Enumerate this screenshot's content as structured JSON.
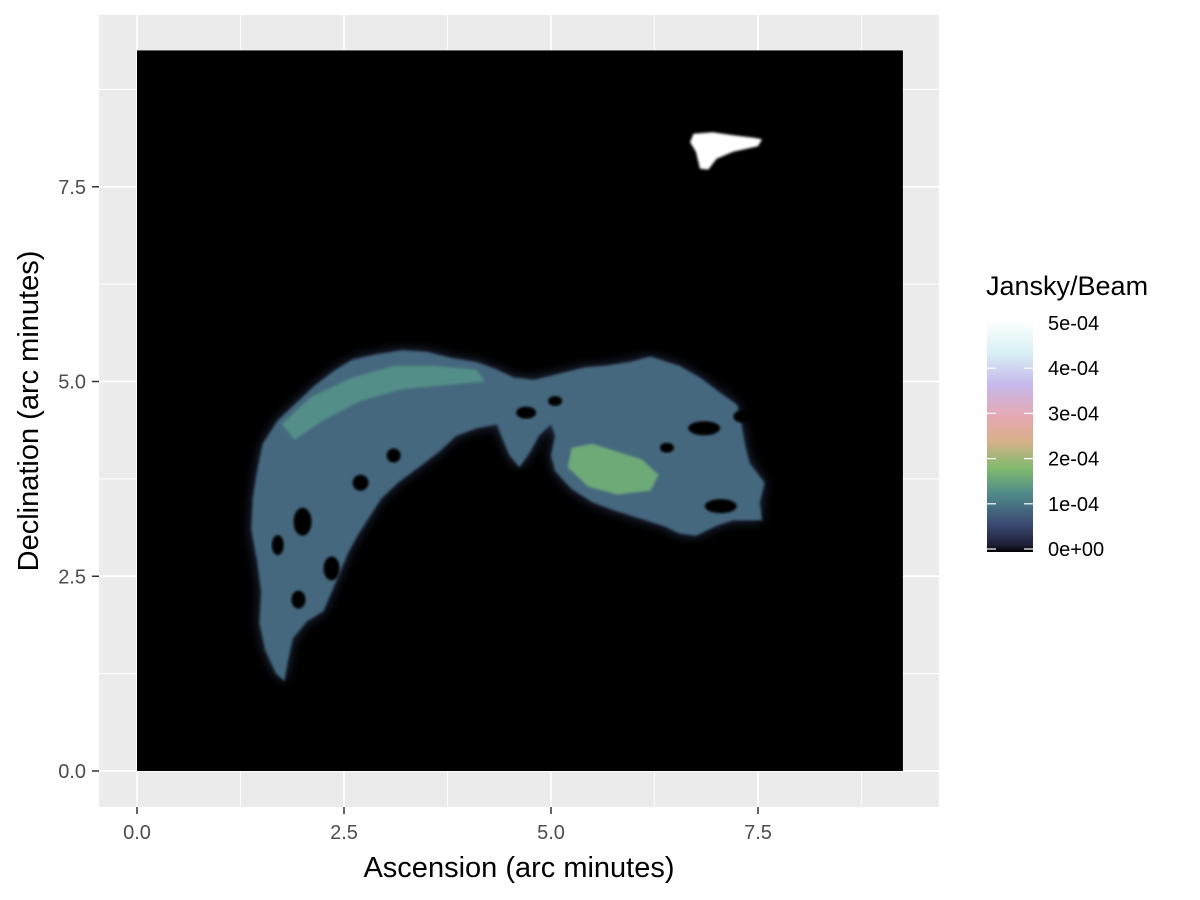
{
  "chart_data": {
    "type": "heatmap",
    "title": "",
    "xlabel": "Ascension (arc minutes)",
    "ylabel": "Declination (arc minutes)",
    "xlim": [
      -0.9,
      19.4
    ],
    "ylim": [
      -0.9,
      19.4
    ],
    "x_ticks": [
      0.0,
      2.5,
      5.0,
      7.5
    ],
    "x_tick_labels": [
      "0.0",
      "2.5",
      "5.0",
      "7.5"
    ],
    "y_ticks": [
      0.0,
      2.5,
      5.0,
      7.5
    ],
    "y_tick_labels": [
      "0.0",
      "2.5",
      "5.0",
      "7.5"
    ],
    "image_extent": {
      "x": [
        0.0,
        9.25
      ],
      "y": [
        0.0,
        9.25
      ]
    },
    "grid": true,
    "legend": {
      "title": "Jansky/Beam",
      "placement": "right",
      "breaks": [
        0.0,
        0.0001,
        0.0002,
        0.0003,
        0.0004,
        0.0005
      ],
      "break_labels": [
        "0e+00",
        "1e-04",
        "2e-04",
        "3e-04",
        "4e-04",
        "5e-04"
      ],
      "limits": [
        0.0,
        0.0005
      ]
    },
    "colormap": [
      "#000000",
      "#3b4a72",
      "#4f8a8b",
      "#7fba6d",
      "#e6a8b0",
      "#c6b8ec",
      "#eaf6f8",
      "#ffffff"
    ],
    "regions": [
      {
        "name": "upper-right compact source",
        "value": 0.00055,
        "outline": [
          [
            6.72,
            8.18
          ],
          [
            6.95,
            8.2
          ],
          [
            7.2,
            8.16
          ],
          [
            7.45,
            8.13
          ],
          [
            7.55,
            8.11
          ],
          [
            7.5,
            8.02
          ],
          [
            7.2,
            7.95
          ],
          [
            7.0,
            7.86
          ],
          [
            6.9,
            7.72
          ],
          [
            6.8,
            7.73
          ],
          [
            6.75,
            7.95
          ],
          [
            6.68,
            8.07
          ]
        ]
      },
      {
        "name": "arc and extended emission",
        "value": 9e-05,
        "outline": [
          [
            1.78,
            1.15
          ],
          [
            1.82,
            1.4
          ],
          [
            1.88,
            1.7
          ],
          [
            2.05,
            1.92
          ],
          [
            2.25,
            2.05
          ],
          [
            2.35,
            2.3
          ],
          [
            2.45,
            2.55
          ],
          [
            2.55,
            2.8
          ],
          [
            2.65,
            3.0
          ],
          [
            2.8,
            3.25
          ],
          [
            2.95,
            3.5
          ],
          [
            3.15,
            3.7
          ],
          [
            3.4,
            3.9
          ],
          [
            3.65,
            4.1
          ],
          [
            3.85,
            4.3
          ],
          [
            4.1,
            4.4
          ],
          [
            4.35,
            4.45
          ],
          [
            4.4,
            4.3
          ],
          [
            4.5,
            4.05
          ],
          [
            4.62,
            3.9
          ],
          [
            4.75,
            4.1
          ],
          [
            4.85,
            4.3
          ],
          [
            5.0,
            4.45
          ],
          [
            5.05,
            4.3
          ],
          [
            5.0,
            4.05
          ],
          [
            5.05,
            3.85
          ],
          [
            5.25,
            3.62
          ],
          [
            5.5,
            3.45
          ],
          [
            5.75,
            3.35
          ],
          [
            6.05,
            3.25
          ],
          [
            6.35,
            3.15
          ],
          [
            6.55,
            3.05
          ],
          [
            6.75,
            3.02
          ],
          [
            7.0,
            3.15
          ],
          [
            7.2,
            3.22
          ],
          [
            7.55,
            3.22
          ],
          [
            7.52,
            3.45
          ],
          [
            7.58,
            3.7
          ],
          [
            7.4,
            3.95
          ],
          [
            7.35,
            4.15
          ],
          [
            7.3,
            4.45
          ],
          [
            7.25,
            4.7
          ],
          [
            7.05,
            4.85
          ],
          [
            6.8,
            5.05
          ],
          [
            6.55,
            5.2
          ],
          [
            6.2,
            5.32
          ],
          [
            5.95,
            5.25
          ],
          [
            5.65,
            5.2
          ],
          [
            5.4,
            5.18
          ],
          [
            5.1,
            5.1
          ],
          [
            4.8,
            5.02
          ],
          [
            4.55,
            5.05
          ],
          [
            4.35,
            5.15
          ],
          [
            4.1,
            5.25
          ],
          [
            3.8,
            5.3
          ],
          [
            3.5,
            5.38
          ],
          [
            3.2,
            5.4
          ],
          [
            2.9,
            5.35
          ],
          [
            2.6,
            5.28
          ],
          [
            2.4,
            5.15
          ],
          [
            2.15,
            4.95
          ],
          [
            1.95,
            4.75
          ],
          [
            1.7,
            4.5
          ],
          [
            1.52,
            4.2
          ],
          [
            1.45,
            3.85
          ],
          [
            1.4,
            3.5
          ],
          [
            1.38,
            3.1
          ],
          [
            1.45,
            2.7
          ],
          [
            1.5,
            2.3
          ],
          [
            1.48,
            1.9
          ],
          [
            1.55,
            1.55
          ],
          [
            1.68,
            1.25
          ]
        ]
      },
      {
        "name": "bright knot west lobe",
        "value": 0.00016,
        "outline": [
          [
            5.2,
            3.9
          ],
          [
            5.45,
            3.65
          ],
          [
            5.8,
            3.55
          ],
          [
            6.2,
            3.6
          ],
          [
            6.3,
            3.8
          ],
          [
            6.1,
            4.0
          ],
          [
            5.8,
            4.1
          ],
          [
            5.5,
            4.2
          ],
          [
            5.25,
            4.15
          ]
        ]
      },
      {
        "name": "bright knot upper arc",
        "value": 0.00013,
        "outline": [
          [
            1.75,
            4.45
          ],
          [
            2.1,
            4.8
          ],
          [
            2.6,
            5.05
          ],
          [
            3.1,
            5.2
          ],
          [
            3.6,
            5.2
          ],
          [
            4.1,
            5.15
          ],
          [
            4.2,
            5.0
          ],
          [
            3.7,
            4.95
          ],
          [
            3.2,
            4.9
          ],
          [
            2.7,
            4.75
          ],
          [
            2.25,
            4.5
          ],
          [
            1.9,
            4.25
          ]
        ]
      }
    ]
  }
}
